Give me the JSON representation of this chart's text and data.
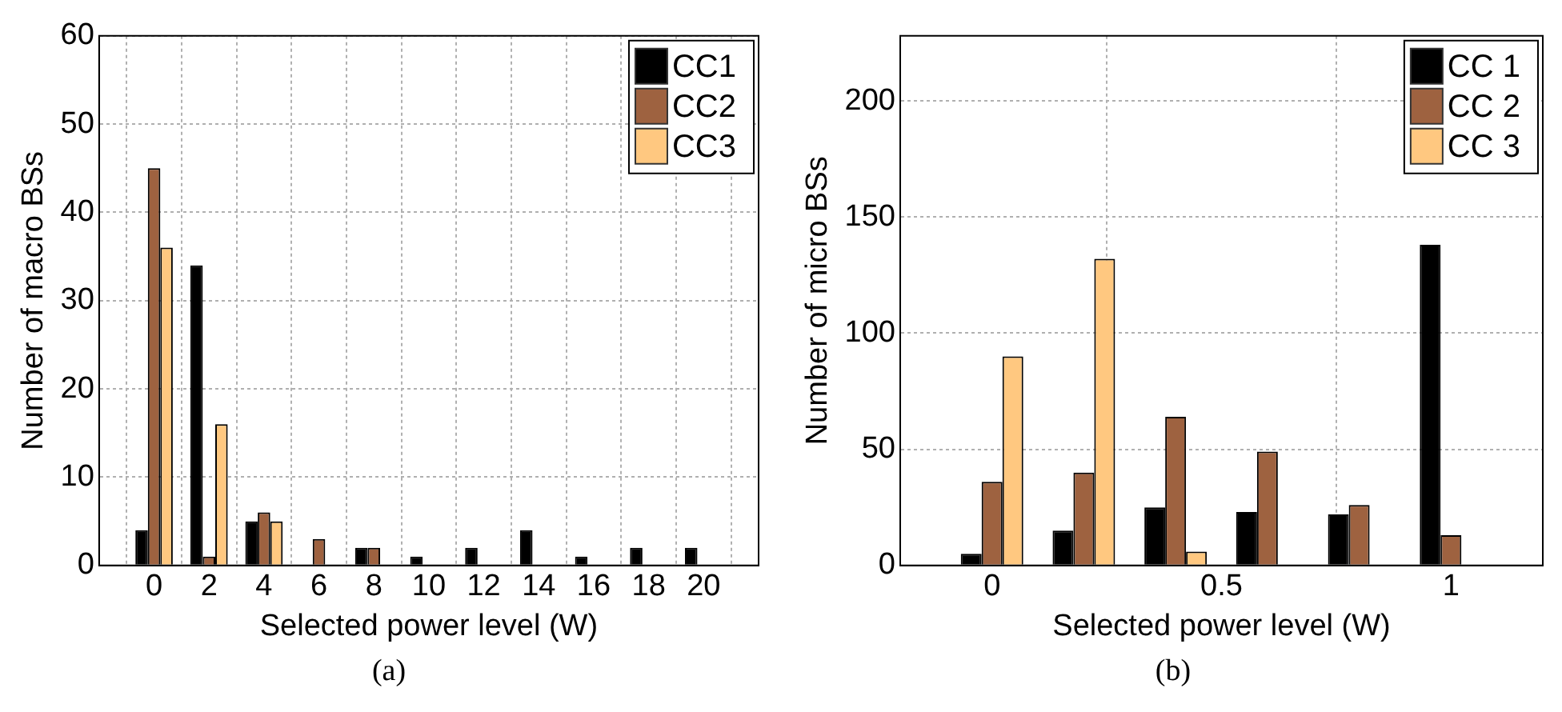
{
  "chart_data": [
    {
      "type": "bar",
      "xlabel": "Selected power level (W)",
      "ylabel": "Number of macro BSs",
      "x": [
        0,
        2,
        4,
        6,
        8,
        10,
        12,
        14,
        16,
        18,
        20
      ],
      "series": [
        {
          "name": "CC1",
          "color": "#000000",
          "values": [
            4,
            34,
            5,
            0,
            2,
            1,
            2,
            4,
            1,
            2,
            2
          ]
        },
        {
          "name": "CC2",
          "color": "#9e6240",
          "values": [
            45,
            1,
            6,
            3,
            2,
            0,
            0,
            0,
            0,
            0,
            0
          ]
        },
        {
          "name": "CC3",
          "color": "#ffc880",
          "values": [
            36,
            16,
            5,
            0,
            0,
            0,
            0,
            0,
            0,
            0,
            0
          ]
        }
      ],
      "xlim": [
        -2,
        22
      ],
      "xticks": [
        0,
        2,
        4,
        6,
        8,
        10,
        12,
        14,
        16,
        18,
        20
      ],
      "ylim": [
        0,
        60
      ],
      "yticks": [
        0,
        10,
        20,
        30,
        40,
        50,
        60
      ],
      "grid": true,
      "legend": "top right",
      "annotations": [
        "(a)"
      ]
    },
    {
      "type": "bar",
      "xlabel": "Selected power level (W)",
      "ylabel": "Number of micro BSs",
      "x": [
        0,
        0.2,
        0.4,
        0.6,
        0.8,
        1
      ],
      "series": [
        {
          "name": "CC 1",
          "color": "#000000",
          "values": [
            5,
            15,
            25,
            23,
            22,
            138
          ]
        },
        {
          "name": "CC 2",
          "color": "#9e6240",
          "values": [
            36,
            40,
            64,
            49,
            26,
            13
          ]
        },
        {
          "name": "CC 3",
          "color": "#ffc880",
          "values": [
            90,
            132,
            6,
            0,
            0,
            0
          ]
        }
      ],
      "xlim": [
        -0.2,
        1.2
      ],
      "xticks": [
        0,
        0.5,
        1
      ],
      "ylim": [
        0,
        228
      ],
      "yticks": [
        0,
        50,
        100,
        150,
        200
      ],
      "grid": true,
      "legend": "top right",
      "annotations": [
        "(b)"
      ]
    }
  ]
}
